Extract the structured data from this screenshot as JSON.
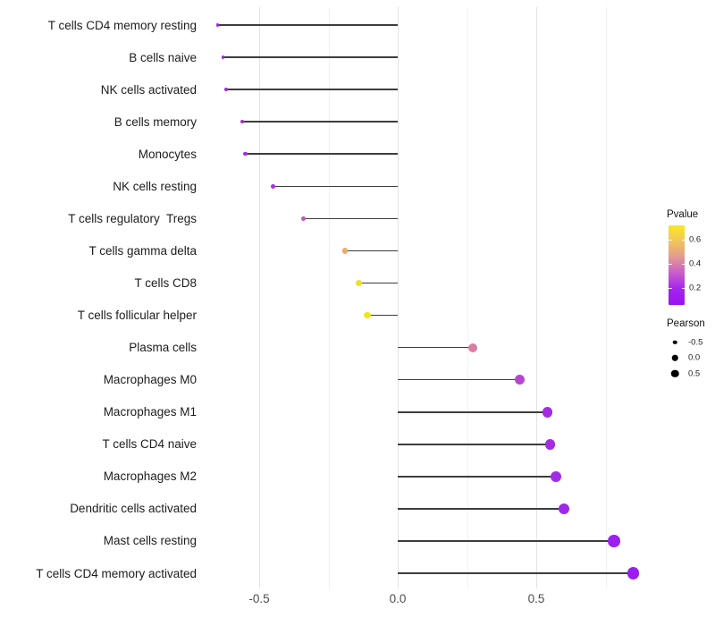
{
  "chart_data": {
    "type": "lollipop",
    "title": "",
    "xlabel": "",
    "ylabel": "",
    "x_ticks": [
      -0.5,
      0.0,
      0.5
    ],
    "x_tick_labels": [
      "-0.5",
      "0.0",
      "0.5"
    ],
    "x_minor_ticks": [
      -0.25,
      0.25,
      0.75
    ],
    "xlim": [
      -0.7,
      0.9
    ],
    "grid": true,
    "points": [
      {
        "label": "T cells CD4 memory resting",
        "pearson": -0.65,
        "color": "#A228E0"
      },
      {
        "label": "B cells naive",
        "pearson": -0.63,
        "color": "#A228E0"
      },
      {
        "label": "NK cells activated",
        "pearson": -0.62,
        "color": "#A12BE0"
      },
      {
        "label": "B cells memory",
        "pearson": -0.56,
        "color": "#A430DE"
      },
      {
        "label": "Monocytes",
        "pearson": -0.55,
        "color": "#A430DE"
      },
      {
        "label": "NK cells resting",
        "pearson": -0.45,
        "color": "#A62FD9"
      },
      {
        "label": "T cells regulatory  Tregs",
        "pearson": -0.34,
        "color": "#BE54C6"
      },
      {
        "label": "T cells gamma delta",
        "pearson": -0.19,
        "color": "#EBAB6C"
      },
      {
        "label": "T cells CD8",
        "pearson": -0.14,
        "color": "#F2DD2E"
      },
      {
        "label": "T cells follicular helper",
        "pearson": -0.11,
        "color": "#F2E51E"
      },
      {
        "label": "Plasma cells",
        "pearson": 0.27,
        "color": "#DC7DA6"
      },
      {
        "label": "Macrophages M0",
        "pearson": 0.44,
        "color": "#B546D0"
      },
      {
        "label": "Macrophages M1",
        "pearson": 0.54,
        "color": "#A62BE2"
      },
      {
        "label": "T cells CD4 naive",
        "pearson": 0.55,
        "color": "#A52BE4"
      },
      {
        "label": "Macrophages M2",
        "pearson": 0.57,
        "color": "#A22CE6"
      },
      {
        "label": "Dendritic cells activated",
        "pearson": 0.6,
        "color": "#9E27E8"
      },
      {
        "label": "Mast cells resting",
        "pearson": 0.78,
        "color": "#9C20EE"
      },
      {
        "label": "T cells CD4 memory activated",
        "pearson": 0.85,
        "color": "#9A1CF0"
      }
    ],
    "legend": {
      "position": "right",
      "pvalue": {
        "title": "Pvalue",
        "tick_labels": [
          "0.6",
          "0.4",
          "0.2"
        ],
        "gradient_top_to_bottom": [
          "#F9E721",
          "#F2C55B",
          "#E29A93",
          "#C95CCC",
          "#A424EC",
          "#9A13F2"
        ]
      },
      "pearson": {
        "title": "Pearson",
        "items": [
          {
            "label": "-0.5"
          },
          {
            "label": "0.0"
          },
          {
            "label": "0.5"
          }
        ]
      }
    },
    "stem_color": "#3d3d3d",
    "background": "#ffffff"
  }
}
